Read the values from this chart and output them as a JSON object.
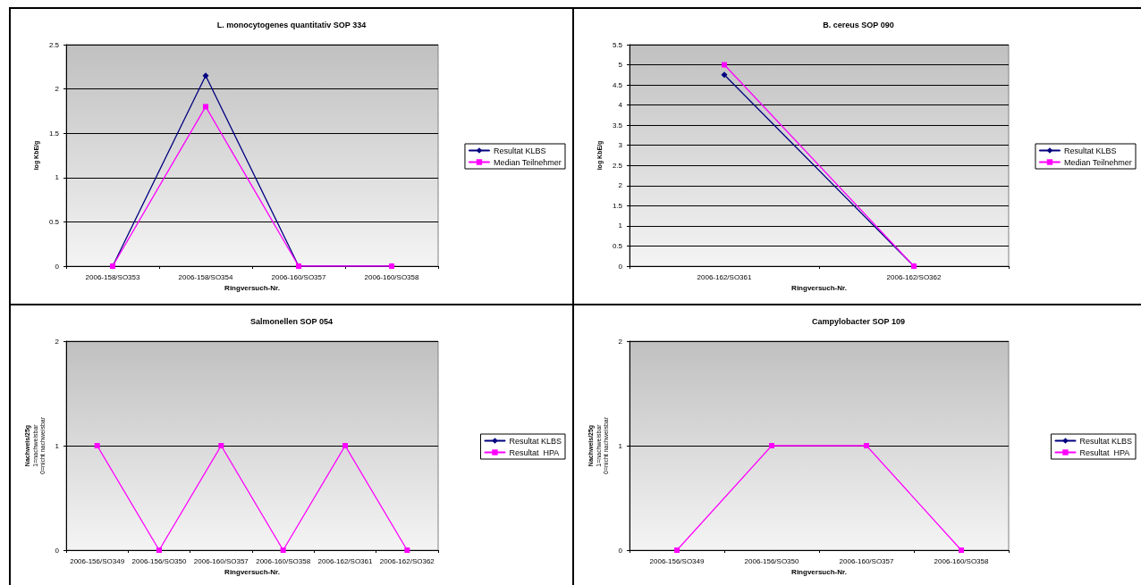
{
  "chart_data": [
    {
      "type": "line",
      "title": "L. monocytogenes quantitativ SOP 334",
      "xlabel": "Ringversuch-Nr.",
      "ylabel": "log KbE/g",
      "categories": [
        "2006-158/SO353",
        "2006-158/SO354",
        "2006-160/SO357",
        "2006-160/SO358"
      ],
      "series": [
        {
          "name": "Resultat KLBS",
          "color": "#000080",
          "marker": "diamond",
          "values": [
            0,
            2.15,
            0,
            0
          ]
        },
        {
          "name": "Median Teilnehmer",
          "color": "#ff00ff",
          "marker": "square",
          "values": [
            0,
            1.8,
            0,
            0
          ]
        }
      ],
      "ylim": [
        0,
        2.5
      ],
      "yticks": [
        0,
        0.5,
        1,
        1.5,
        2,
        2.5
      ],
      "grid": "y",
      "legend": "right",
      "line_style": "solid"
    },
    {
      "type": "line",
      "title": "B. cereus SOP 090",
      "xlabel": "Ringversuch-Nr.",
      "ylabel": "log KbE/g",
      "categories": [
        "2006-162/SO361",
        "2006-162/SO362"
      ],
      "series": [
        {
          "name": "Resultat KLBS",
          "color": "#000080",
          "marker": "diamond",
          "values": [
            4.75,
            0
          ]
        },
        {
          "name": "Median Teilnehmer",
          "color": "#ff00ff",
          "marker": "square",
          "values": [
            5,
            0
          ]
        }
      ],
      "ylim": [
        0,
        5.5
      ],
      "yticks": [
        0,
        0.5,
        1,
        1.5,
        2,
        2.5,
        3,
        3.5,
        4,
        4.5,
        5,
        5.5
      ],
      "grid": "y",
      "legend": "right",
      "line_style": "solid"
    },
    {
      "type": "line",
      "title": "Salmonellen SOP 054",
      "xlabel": "Ringversuch-Nr.",
      "ylabel": "Nachweis/25g\n1=nachweisbar\n0=nicht nachweisbar",
      "categories": [
        "2006-156/SO349",
        "2006-156/SO350",
        "2006-160/SO357",
        "2006-160/SO358",
        "2006-162/SO361",
        "2006-162/SO362"
      ],
      "series": [
        {
          "name": "Resultat KLBS",
          "color": "#000080",
          "marker": "diamond",
          "values": [
            null,
            null,
            null,
            null,
            null,
            null
          ]
        },
        {
          "name": "Resultat  HPA",
          "color": "#ff00ff",
          "marker": "square",
          "values": [
            1,
            0,
            1,
            0,
            1,
            0
          ]
        }
      ],
      "ylim": [
        0,
        2
      ],
      "yticks": [
        0,
        1,
        2
      ],
      "grid": "y",
      "legend": "right",
      "line_style": "solid"
    },
    {
      "type": "line",
      "title": "Campylobacter SOP 109",
      "xlabel": "Ringversuch-Nr.",
      "ylabel": "Nachweis/25g\n1=nachweisbar\n0=nicht nachweisbar",
      "categories": [
        "2006-156/SO349",
        "2006-156/SO350",
        "2006-160/SO357",
        "2006-160/SO358"
      ],
      "series": [
        {
          "name": "Resultat KLBS",
          "color": "#000080",
          "marker": "diamond",
          "values": [
            null,
            null,
            null,
            null
          ]
        },
        {
          "name": "Resultat  HPA",
          "color": "#ff00ff",
          "marker": "square",
          "values": [
            0,
            1,
            1,
            0
          ]
        }
      ],
      "ylim": [
        0,
        2
      ],
      "yticks": [
        0,
        1,
        2
      ],
      "grid": "y",
      "legend": "right",
      "line_style": "solid"
    }
  ]
}
